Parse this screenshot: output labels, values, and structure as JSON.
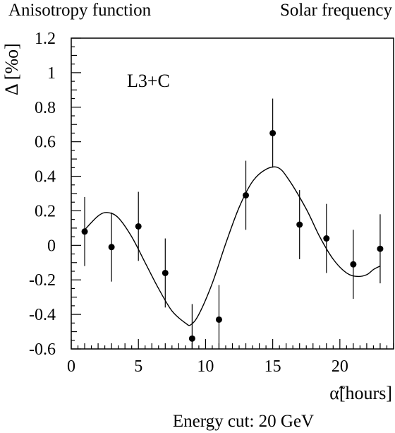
{
  "header": {
    "left_title": "Anisotropy function",
    "right_title": "Solar frequency"
  },
  "footer": {
    "caption": "Energy cut: 20 GeV"
  },
  "chart_data": {
    "type": "scatter",
    "xlabel": "α̃[hours]",
    "ylabel": "Δ [%o]",
    "annotation": "L3+C",
    "xlim": [
      0,
      24
    ],
    "ylim": [
      -0.6,
      1.2
    ],
    "x_ticks": [
      0,
      5,
      10,
      15,
      20
    ],
    "y_ticks": [
      1.2,
      1,
      0.8,
      0.6,
      0.4,
      0.2,
      0,
      -0.2,
      -0.4,
      -0.6
    ],
    "y_tick_labels": [
      "1.2",
      "1",
      "0.8",
      "0.6",
      "0.4",
      "0.2",
      "0",
      "-0.2",
      "-0.4",
      "-0.6"
    ],
    "grid": false,
    "series": [
      {
        "x": [
          1,
          3,
          5,
          7,
          9,
          11,
          13,
          15,
          17,
          19,
          21,
          23
        ],
        "y": [
          0.08,
          -0.01,
          0.11,
          -0.16,
          -0.54,
          -0.43,
          0.29,
          0.65,
          0.12,
          0.04,
          -0.11,
          -0.02
        ],
        "yerr": [
          0.2,
          0.2,
          0.2,
          0.2,
          0.2,
          0.2,
          0.2,
          0.2,
          0.2,
          0.2,
          0.2,
          0.2
        ]
      }
    ],
    "fit_curve": {
      "x": [
        1,
        2,
        2.7,
        3.5,
        4.5,
        5.5,
        6.5,
        7.5,
        8.5,
        8.9,
        9.5,
        10.5,
        11.5,
        12.5,
        13.5,
        14.5,
        15.4,
        16.2,
        17.5,
        18.5,
        19.5,
        20.5,
        21.3,
        22,
        22.5,
        23
      ],
      "y": [
        0.09,
        0.17,
        0.19,
        0.16,
        0.05,
        -0.1,
        -0.25,
        -0.38,
        -0.45,
        -0.46,
        -0.4,
        -0.22,
        0.01,
        0.22,
        0.37,
        0.44,
        0.45,
        0.38,
        0.21,
        0.05,
        -0.08,
        -0.16,
        -0.18,
        -0.17,
        -0.14,
        -0.12
      ]
    }
  }
}
